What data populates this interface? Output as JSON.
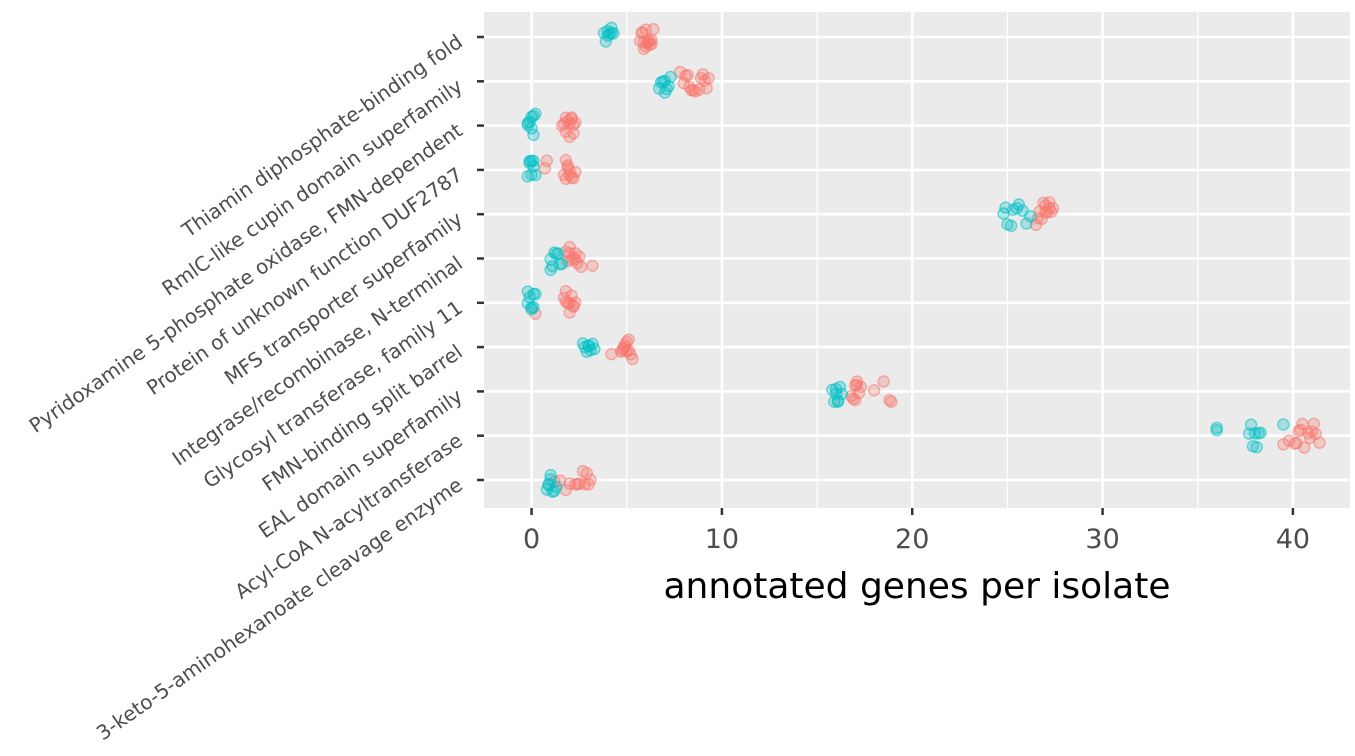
{
  "chart_data": {
    "type": "scatter",
    "title": "",
    "xlabel": "annotated genes per isolate",
    "ylabel": "",
    "xlim": [
      -2.5,
      43
    ],
    "x_ticks": [
      0,
      10,
      20,
      30,
      40
    ],
    "x_tick_labels": [
      "0",
      "10",
      "20",
      "30",
      "40"
    ],
    "grid": true,
    "legend": "none",
    "jitter": "points are horizontally and vertically jittered around each category",
    "categories": [
      "Thiamin diphosphate-binding fold",
      "RmlC-like cupin domain superfamily",
      "Pyridoxamine 5-phosphate oxidase, FMN-dependent",
      "Protein of unknown function DUF2787",
      "MFS transporter superfamily",
      "Integrase/recombinase, N-terminal",
      "Glycosyl transferase, family 11",
      "FMN-binding split barrel",
      "EAL domain superfamily",
      "Acyl-CoA N-acyltransferase",
      "3-keto-5-aminohexanoate cleavage enzyme"
    ],
    "series": [
      {
        "color": "#f8766d",
        "values": [
          [
            6.2,
            5.8,
            6.3,
            5.9,
            6.1,
            5.7,
            6.4,
            6.0,
            5.9,
            6.2,
            6.1,
            5.8,
            6.3,
            6.0
          ],
          [
            8.0,
            8.2,
            9.0,
            9.2,
            8.5,
            8.8,
            7.8,
            9.1,
            8.3,
            8.9,
            8.1,
            9.3,
            8.6,
            8.4
          ],
          [
            1.7,
            2.0,
            2.2,
            1.8,
            2.1,
            1.9,
            2.3,
            1.6,
            2.0,
            2.2,
            1.8,
            2.1
          ],
          [
            0.7,
            1.8,
            2.1,
            1.9,
            2.0,
            2.2,
            1.7,
            0.8,
            2.3,
            1.8,
            2.0,
            1.9
          ],
          [
            26.8,
            27.2,
            26.7,
            27.3,
            27.0,
            26.5,
            27.1,
            26.9,
            27.4,
            27.0,
            26.6,
            27.2
          ],
          [
            2.0,
            2.3,
            2.5,
            1.8,
            3.2,
            2.2,
            2.1,
            2.6,
            1.9,
            2.4,
            2.0,
            2.3
          ],
          [
            1.8,
            2.0,
            2.2,
            1.7,
            2.3,
            0.2,
            2.1,
            1.9,
            2.0,
            2.2,
            1.8
          ],
          [
            4.8,
            5.1,
            4.9,
            5.2,
            4.7,
            5.0,
            4.2,
            5.3,
            4.9,
            5.1,
            4.8,
            5.0
          ],
          [
            17.0,
            17.2,
            16.8,
            18.5,
            18.9,
            17.1,
            17.0,
            18.0,
            16.9,
            17.3,
            18.8,
            17.1
          ],
          [
            40.2,
            40.8,
            41.2,
            40.5,
            41.0,
            39.8,
            40.1,
            41.4,
            40.6,
            40.9,
            39.5,
            40.3,
            41.1,
            40.4
          ],
          [
            1.5,
            2.0,
            2.3,
            2.8,
            3.1,
            2.5,
            1.8,
            3.0,
            2.7,
            1.2,
            2.9,
            2.4
          ]
        ]
      },
      {
        "color": "#00bfc4",
        "values": [
          [
            4.0,
            4.2,
            3.9,
            4.3,
            4.1,
            4.0,
            3.8,
            4.2
          ],
          [
            6.8,
            7.0,
            7.2,
            6.9,
            7.1,
            6.7,
            7.3,
            7.0
          ],
          [
            -0.2,
            0.0,
            0.1,
            -0.1,
            0.2,
            0.0,
            -0.2,
            0.1
          ],
          [
            -0.1,
            0.1,
            0.0,
            -0.2,
            0.2,
            0.0,
            0.1,
            -0.1
          ],
          [
            24.8,
            25.0,
            25.3,
            25.6,
            26.0,
            25.8,
            25.2,
            24.9,
            25.5,
            26.2
          ],
          [
            1.0,
            1.2,
            1.5,
            1.3,
            1.1,
            1.4,
            1.0,
            1.6
          ],
          [
            -0.2,
            0.0,
            0.1,
            -0.1,
            0.2,
            0.0,
            -0.2,
            0.1
          ],
          [
            2.8,
            3.0,
            3.2,
            2.9,
            3.1,
            3.3,
            2.7,
            3.0
          ],
          [
            15.8,
            16.0,
            16.2,
            16.1,
            15.9,
            16.3,
            16.0,
            16.1
          ],
          [
            36.0,
            37.8,
            38.0,
            38.2,
            37.9,
            38.1,
            39.5,
            37.7,
            38.3,
            36.0
          ],
          [
            0.8,
            1.0,
            1.2,
            0.9,
            1.1,
            1.3,
            1.0,
            0.9
          ]
        ]
      }
    ]
  }
}
